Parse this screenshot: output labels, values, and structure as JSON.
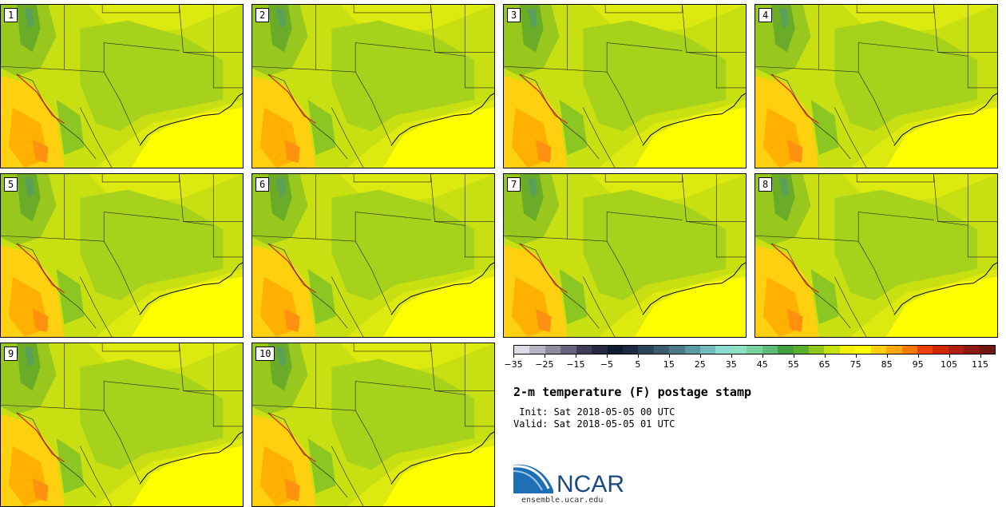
{
  "panels": [
    {
      "label": "1"
    },
    {
      "label": "2"
    },
    {
      "label": "3"
    },
    {
      "label": "4"
    },
    {
      "label": "5"
    },
    {
      "label": "6"
    },
    {
      "label": "7"
    },
    {
      "label": "8"
    },
    {
      "label": "9"
    },
    {
      "label": "10"
    }
  ],
  "colorbar": {
    "colors": [
      "#dcdce6",
      "#b4b4c4",
      "#8c8ca0",
      "#64647c",
      "#3c3c56",
      "#282a40",
      "#101c30",
      "#1a2a42",
      "#2a4458",
      "#3a5c6e",
      "#4a7a86",
      "#5c9aa2",
      "#72bcbc",
      "#8cdcd4",
      "#8ce0c4",
      "#78d2a0",
      "#5cbc78",
      "#40a040",
      "#58b02c",
      "#90c81c",
      "#c8e010",
      "#f0f000",
      "#ffff00",
      "#ffd010",
      "#ffa810",
      "#ff7800",
      "#f04000",
      "#d02800",
      "#b02010",
      "#8c1a10",
      "#701810"
    ],
    "tick_labels": [
      "−35",
      "−25",
      "−15",
      "−5",
      "5",
      "15",
      "25",
      "35",
      "45",
      "55",
      "65",
      "75",
      "85",
      "95",
      "105",
      "115"
    ]
  },
  "title": "2-m temperature (F) postage stamp",
  "init_line": " Init: Sat 2018-05-05 00 UTC",
  "valid_line": "Valid: Sat 2018-05-05 01 UTC",
  "logo": {
    "text": "NCAR",
    "url": "ensemble.ucar.edu"
  }
}
